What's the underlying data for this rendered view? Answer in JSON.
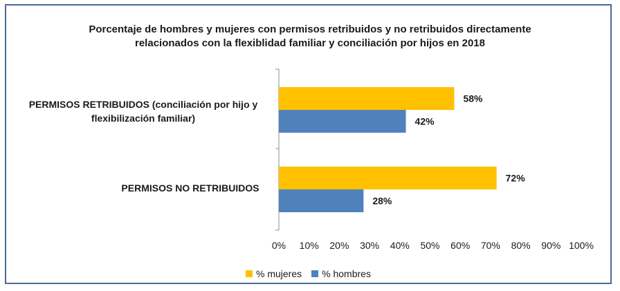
{
  "chart_data": {
    "type": "bar",
    "orientation": "horizontal",
    "title": [
      "Porcentaje de hombres y mujeres con permisos retribuidos y no retribuidos directamente",
      "relacionados con la flexiblidad familiar  y conciliación por hijos en 2018"
    ],
    "categories": [
      [
        "PERMISOS RETRIBUIDOS (conciliación por hijo y",
        "flexibilización familiar)"
      ],
      [
        "PERMISOS NO RETRIBUIDOS"
      ]
    ],
    "series": [
      {
        "name": "% mujeres",
        "color": "#FFC000",
        "values": [
          58,
          72
        ],
        "labels": [
          "58%",
          "72%"
        ]
      },
      {
        "name": "% hombres",
        "color": "#4F81BD",
        "values": [
          42,
          28
        ],
        "labels": [
          "42%",
          "28%"
        ]
      }
    ],
    "xlim": [
      0,
      100
    ],
    "x_ticks": [
      "0%",
      "10%",
      "20%",
      "30%",
      "40%",
      "50%",
      "60%",
      "70%",
      "80%",
      "90%",
      "100%"
    ],
    "grid": false,
    "legend_position": "bottom"
  }
}
